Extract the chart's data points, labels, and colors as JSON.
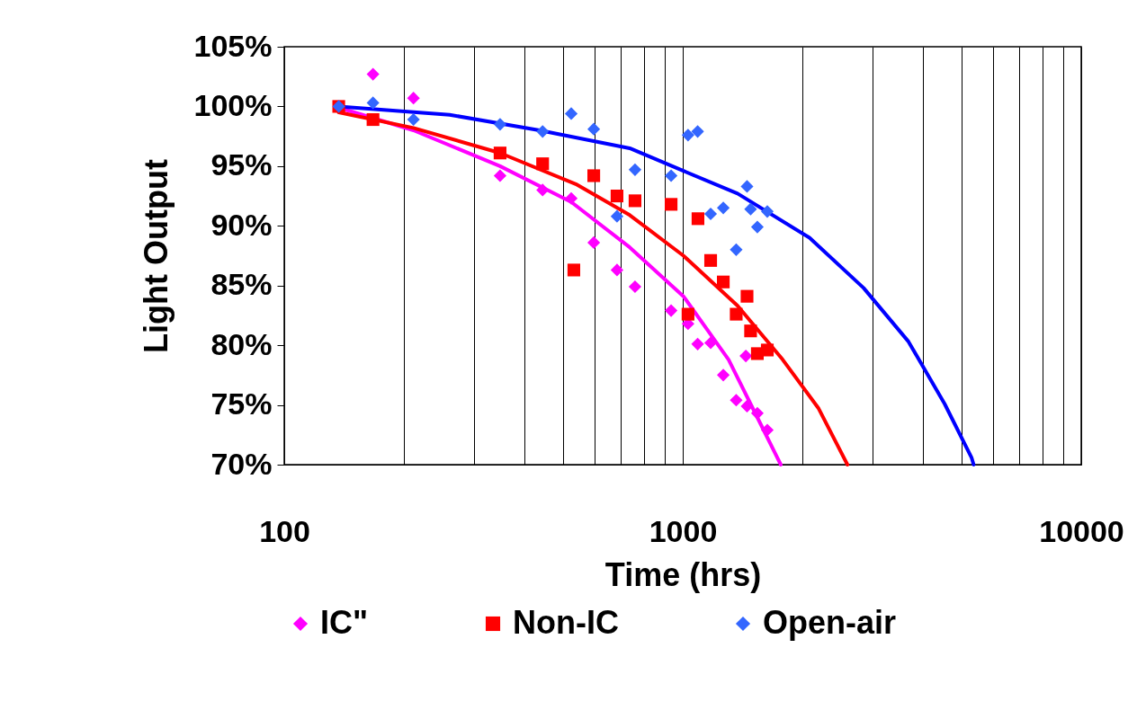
{
  "chart_data": {
    "type": "scatter",
    "xlabel": "Time (hrs)",
    "ylabel": "Light Output",
    "log": "x",
    "grid": "x",
    "legend": "bottom",
    "xlim": [
      100,
      10000
    ],
    "ylim": [
      70,
      105
    ],
    "xticks": [
      100,
      {
        "value": 200,
        "label": null
      },
      {
        "value": 300,
        "label": null
      },
      {
        "value": 400,
        "label": null
      },
      {
        "value": 500,
        "label": null
      },
      {
        "value": 600,
        "label": null
      },
      {
        "value": 700,
        "label": null
      },
      {
        "value": 800,
        "label": null
      },
      {
        "value": 900,
        "label": null
      },
      1000,
      {
        "value": 2000,
        "label": null
      },
      {
        "value": 3000,
        "label": null
      },
      {
        "value": 4000,
        "label": null
      },
      {
        "value": 5000,
        "label": null
      },
      {
        "value": 6000,
        "label": null
      },
      {
        "value": 7000,
        "label": null
      },
      {
        "value": 8000,
        "label": null
      },
      {
        "value": 9000,
        "label": null
      },
      10000
    ],
    "yticks": [
      {
        "value": 70,
        "label": "70%"
      },
      {
        "value": 75,
        "label": "75%"
      },
      {
        "value": 80,
        "label": "80%"
      },
      {
        "value": 85,
        "label": "85%"
      },
      {
        "value": 90,
        "label": "90%"
      },
      {
        "value": 95,
        "label": "95%"
      },
      {
        "value": 100,
        "label": "100%"
      },
      {
        "value": 105,
        "label": "105%"
      }
    ],
    "series": [
      {
        "type": "line",
        "color": "#ff00ff",
        "x": [
          137,
          211,
          348,
          525,
          736,
          1004,
          1303,
          1563,
          1762
        ],
        "values": [
          99.9,
          98.0,
          95.0,
          92.0,
          88.2,
          84.1,
          78.8,
          73.5,
          70.0
        ]
      },
      {
        "type": "line",
        "color": "#ff0000",
        "x": [
          137,
          211,
          348,
          539,
          736,
          1004,
          1373,
          1781,
          2193,
          2590
        ],
        "values": [
          99.5,
          98.2,
          96.1,
          93.5,
          90.9,
          87.5,
          83.3,
          78.8,
          74.7,
          70.0
        ]
      },
      {
        "type": "line",
        "color": "#0000ff",
        "x": [
          137,
          260,
          437,
          736,
          1004,
          1373,
          2080,
          2843,
          3686,
          4540,
          5305,
          5370
        ],
        "values": [
          100.0,
          99.3,
          98.0,
          96.5,
          94.6,
          92.7,
          89.0,
          84.8,
          80.3,
          75.1,
          70.6,
          70.0
        ]
      },
      {
        "name": "IC\"",
        "marker": "diamond",
        "color": "#ff00ff",
        "x": [
          167,
          211,
          348,
          445,
          525,
          598,
          684,
          759,
          935,
          1031,
          1090,
          1175,
          1264,
          1362,
          1440,
          1450,
          1539,
          1630
        ],
        "values": [
          102.7,
          100.7,
          94.2,
          93.0,
          92.3,
          88.6,
          86.3,
          84.9,
          82.9,
          81.8,
          80.1,
          80.2,
          77.5,
          75.4,
          79.1,
          74.9,
          74.3,
          72.9
        ]
      },
      {
        "name": "Non-IC",
        "marker": "square",
        "color": "#ff0000",
        "x": [
          137,
          167,
          348,
          445,
          533,
          598,
          684,
          759,
          935,
          1092,
          1175,
          1264,
          1362,
          1031,
          1450,
          1480,
          1539,
          1630
        ],
        "values": [
          100.0,
          98.9,
          96.1,
          95.2,
          86.3,
          94.2,
          92.5,
          92.1,
          91.8,
          90.6,
          87.1,
          85.3,
          82.6,
          82.6,
          84.1,
          81.2,
          79.3,
          79.6
        ]
      },
      {
        "name": "Open-air",
        "marker": "diamond",
        "color": "#3366ff",
        "x": [
          137,
          167,
          211,
          348,
          445,
          525,
          598,
          684,
          759,
          935,
          1031,
          1090,
          1175,
          1264,
          1362,
          1450,
          1480,
          1539,
          1630
        ],
        "values": [
          100.0,
          100.3,
          98.9,
          98.5,
          97.9,
          99.4,
          98.1,
          90.8,
          94.7,
          94.2,
          97.6,
          97.9,
          91.0,
          91.5,
          88.0,
          93.3,
          91.4,
          89.9,
          91.2
        ]
      }
    ]
  }
}
